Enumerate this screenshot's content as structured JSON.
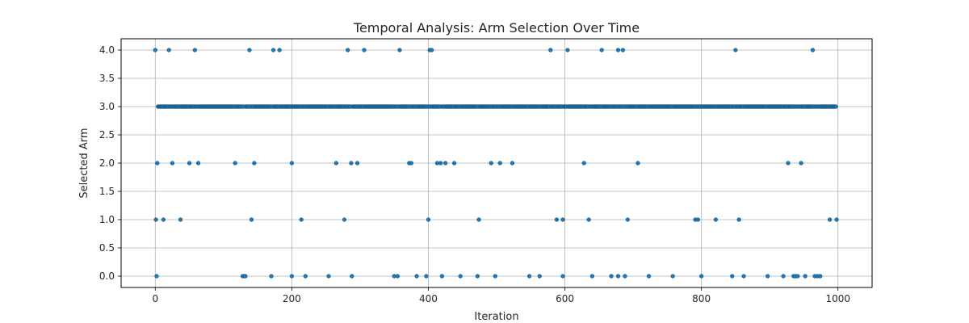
{
  "chart_data": {
    "type": "scatter",
    "title": "Temporal Analysis: Arm Selection Over Time",
    "xlabel": "Iteration",
    "ylabel": "Selected Arm",
    "xlim": [
      -50,
      1050
    ],
    "ylim": [
      -0.2,
      4.2
    ],
    "xticks": [
      0,
      200,
      400,
      600,
      800,
      1000
    ],
    "xtick_labels": [
      "0",
      "200",
      "400",
      "600",
      "800",
      "1000"
    ],
    "yticks": [
      0,
      0.5,
      1,
      1.5,
      2,
      2.5,
      3,
      3.5,
      4
    ],
    "ytick_labels": [
      "0.0",
      "0.5",
      "1.0",
      "1.5",
      "2.0",
      "2.5",
      "3.0",
      "3.5",
      "4.0"
    ],
    "grid": true,
    "marker_color": "#1f77b4",
    "arm3_dense_range": [
      4,
      998
    ],
    "series": [
      {
        "arm": 4,
        "iterations": [
          0,
          20,
          58,
          138,
          173,
          182,
          282,
          306,
          358,
          402,
          405,
          579,
          604,
          654,
          678,
          685,
          850,
          963
        ]
      },
      {
        "arm": 2,
        "iterations": [
          3,
          25,
          50,
          63,
          117,
          145,
          200,
          265,
          287,
          296,
          372,
          375,
          413,
          418,
          425,
          438,
          492,
          505,
          523,
          628,
          707,
          927,
          946
        ]
      },
      {
        "arm": 1,
        "iterations": [
          1,
          12,
          37,
          141,
          214,
          277,
          400,
          474,
          588,
          597,
          635,
          692,
          791,
          795,
          821,
          855,
          988,
          998
        ]
      },
      {
        "arm": 0,
        "iterations": [
          2,
          128,
          131,
          132,
          170,
          200,
          220,
          254,
          288,
          350,
          355,
          383,
          397,
          420,
          447,
          472,
          498,
          548,
          563,
          597,
          640,
          668,
          678,
          688,
          723,
          758,
          800,
          845,
          862,
          897,
          920,
          935,
          938,
          941,
          952,
          966,
          970,
          974
        ]
      },
      {
        "arm": 3,
        "iterations": []
      }
    ]
  }
}
